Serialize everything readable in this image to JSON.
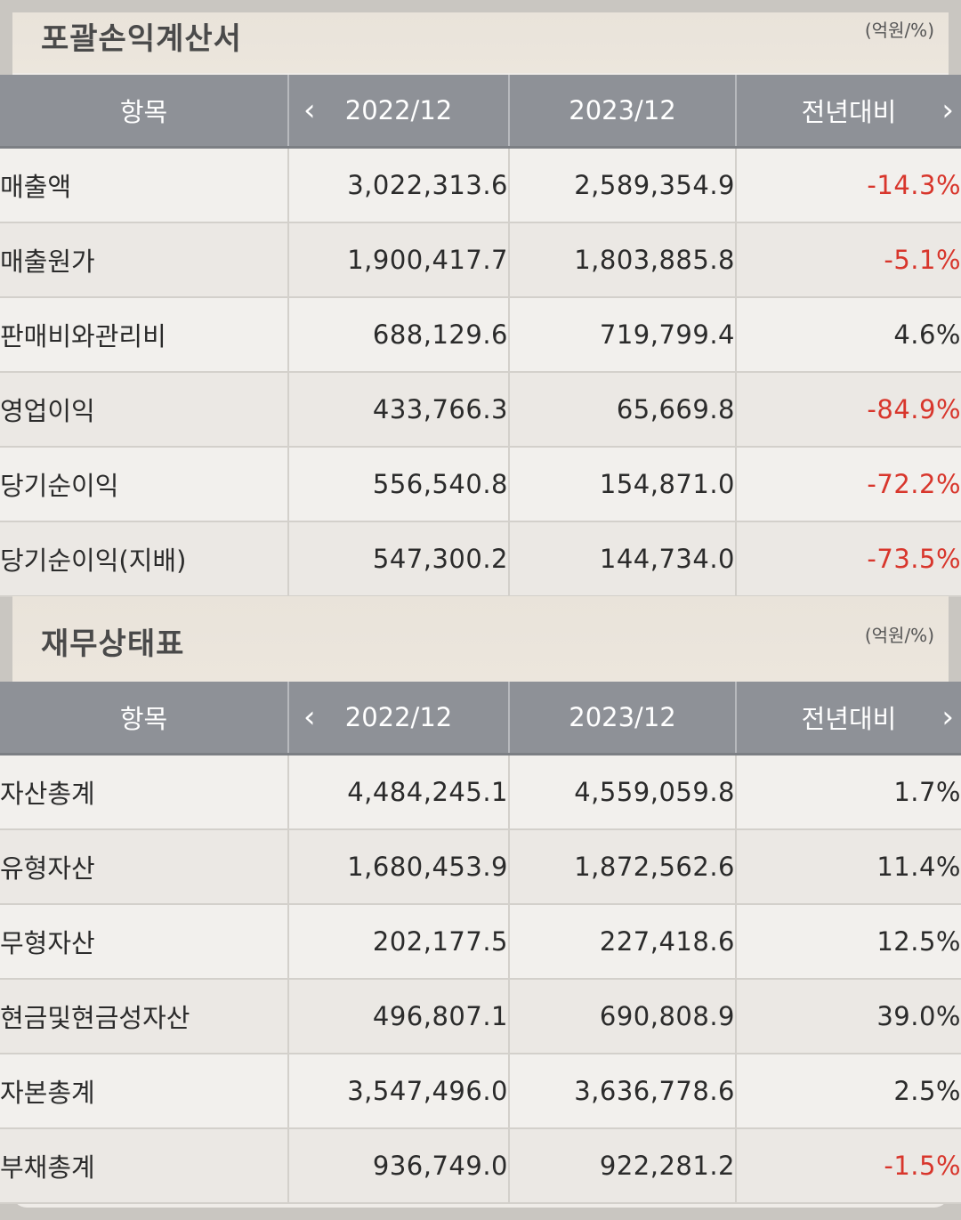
{
  "income": {
    "title": "포괄손익계산서",
    "unit": "(억원/%)",
    "headers": [
      "항목",
      "2022/12",
      "2023/12",
      "전년대비"
    ],
    "rows": [
      {
        "label": "매출액",
        "y2022": "3,022,313.6",
        "y2023": "2,589,354.9",
        "chg": "-14.3%",
        "neg": true
      },
      {
        "label": "매출원가",
        "y2022": "1,900,417.7",
        "y2023": "1,803,885.8",
        "chg": "-5.1%",
        "neg": true
      },
      {
        "label": "판매비와관리비",
        "y2022": "688,129.6",
        "y2023": "719,799.4",
        "chg": "4.6%",
        "neg": false
      },
      {
        "label": "영업이익",
        "y2022": "433,766.3",
        "y2023": "65,669.8",
        "chg": "-84.9%",
        "neg": true
      },
      {
        "label": "당기순이익",
        "y2022": "556,540.8",
        "y2023": "154,871.0",
        "chg": "-72.2%",
        "neg": true
      },
      {
        "label": "당기순이익(지배)",
        "y2022": "547,300.2",
        "y2023": "144,734.0",
        "chg": "-73.5%",
        "neg": true
      }
    ]
  },
  "balance": {
    "title": "재무상태표",
    "unit": "(억원/%)",
    "headers": [
      "항목",
      "2022/12",
      "2023/12",
      "전년대비"
    ],
    "rows": [
      {
        "label": "자산총계",
        "y2022": "4,484,245.1",
        "y2023": "4,559,059.8",
        "chg": "1.7%",
        "neg": false
      },
      {
        "label": "유형자산",
        "y2022": "1,680,453.9",
        "y2023": "1,872,562.6",
        "chg": "11.4%",
        "neg": false
      },
      {
        "label": "무형자산",
        "y2022": "202,177.5",
        "y2023": "227,418.6",
        "chg": "12.5%",
        "neg": false
      },
      {
        "label": "현금및현금성자산",
        "y2022": "496,807.1",
        "y2023": "690,808.9",
        "chg": "39.0%",
        "neg": false
      },
      {
        "label": "자본총계",
        "y2022": "3,547,496.0",
        "y2023": "3,636,778.6",
        "chg": "2.5%",
        "neg": false
      },
      {
        "label": "부채총계",
        "y2022": "936,749.0",
        "y2023": "922,281.2",
        "chg": "-1.5%",
        "neg": true
      }
    ]
  },
  "icons": {
    "prev": "chevron-left-icon",
    "next": "chevron-right-icon"
  },
  "colors": {
    "negative": "#d8362c",
    "header_bg": "#8e9197"
  }
}
